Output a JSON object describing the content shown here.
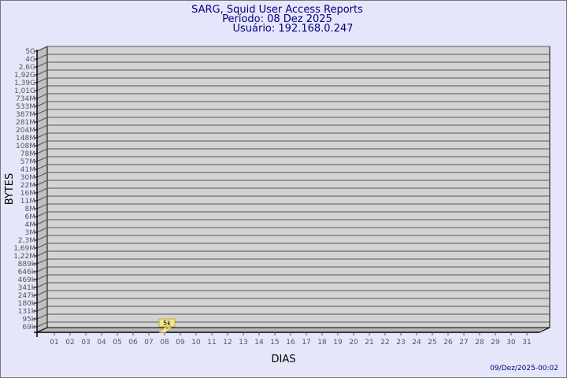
{
  "chart_data": {
    "type": "bar",
    "title": "SARG, Squid User Access Reports",
    "subtitle_period": "Período: 08 Dez 2025",
    "subtitle_user": "Usuário: 192.168.0.247",
    "xlabel": "DIAS",
    "ylabel": "BYTES",
    "footer": "09/Dez/2025-00:02",
    "y_scale": "log",
    "y_tick_labels": [
      "5G",
      "4G",
      "2,6G",
      "1,92G",
      "1,39G",
      "1,01G",
      "734M",
      "533M",
      "387M",
      "281M",
      "204M",
      "148M",
      "108M",
      "78M",
      "57M",
      "41M",
      "30M",
      "22M",
      "16M",
      "11M",
      "8M",
      "6M",
      "4M",
      "3M",
      "2,3M",
      "1,69M",
      "1,22M",
      "889k",
      "646k",
      "469k",
      "341k",
      "247k",
      "180k",
      "131k",
      "95k",
      "69k"
    ],
    "categories": [
      "01",
      "02",
      "03",
      "04",
      "05",
      "06",
      "07",
      "08",
      "09",
      "10",
      "11",
      "12",
      "13",
      "14",
      "15",
      "16",
      "17",
      "18",
      "19",
      "20",
      "21",
      "22",
      "23",
      "24",
      "25",
      "26",
      "27",
      "28",
      "29",
      "30",
      "31"
    ],
    "values": [
      0,
      0,
      0,
      0,
      0,
      0,
      0,
      5000,
      0,
      0,
      0,
      0,
      0,
      0,
      0,
      0,
      0,
      0,
      0,
      0,
      0,
      0,
      0,
      0,
      0,
      0,
      0,
      0,
      0,
      0,
      0
    ],
    "data_labels": [
      {
        "category": "08",
        "label": "5k"
      }
    ],
    "grid": true,
    "colors": {
      "background": "#e6e6fa",
      "wall": "#d3d3d3",
      "bar": "#ffe88a",
      "label_bg": "#f0e68c",
      "title": "#000080"
    }
  }
}
